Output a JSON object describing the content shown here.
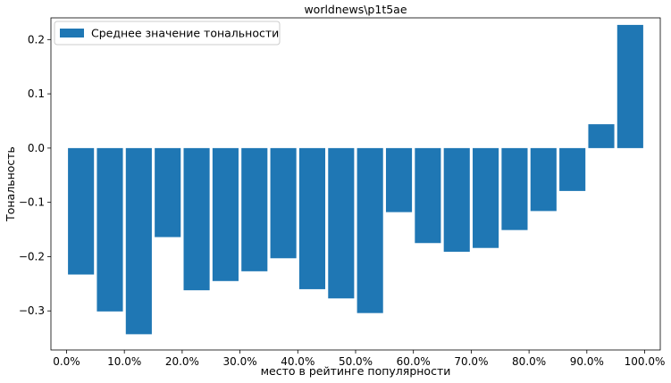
{
  "chart_data": {
    "type": "bar",
    "title": "worldnews\\p1t5ae",
    "xlabel": "место в рейтинге популярности",
    "ylabel": "Тональность",
    "legend": {
      "label": "Среднее значение тональности",
      "position": "top-left"
    },
    "bar_color": "#1f77b4",
    "grid": false,
    "x_range": [
      -0.027,
      1.027
    ],
    "ylim": [
      -0.372,
      0.24
    ],
    "x_ticks": [
      0.0,
      0.1,
      0.2,
      0.3,
      0.4,
      0.5,
      0.6,
      0.7,
      0.8,
      0.9,
      1.0
    ],
    "x_tick_labels": [
      "0.0%",
      "10.0%",
      "20.0%",
      "30.0%",
      "40.0%",
      "50.0%",
      "60.0%",
      "70.0%",
      "80.0%",
      "90.0%",
      "100.0%"
    ],
    "y_ticks": [
      -0.3,
      -0.2,
      -0.1,
      0.0,
      0.1,
      0.2
    ],
    "y_tick_labels": [
      "−0.3",
      "−0.2",
      "−0.1",
      "0.0",
      "0.1",
      "0.2"
    ],
    "bar_width": 0.045,
    "x": [
      0.025,
      0.075,
      0.125,
      0.175,
      0.225,
      0.275,
      0.325,
      0.375,
      0.425,
      0.475,
      0.525,
      0.575,
      0.625,
      0.675,
      0.725,
      0.775,
      0.825,
      0.875,
      0.925,
      0.975
    ],
    "values": [
      -0.233,
      -0.301,
      -0.343,
      -0.164,
      -0.262,
      -0.245,
      -0.227,
      -0.203,
      -0.26,
      -0.277,
      -0.304,
      -0.118,
      -0.175,
      -0.191,
      -0.184,
      -0.151,
      -0.116,
      -0.079,
      0.044,
      0.227
    ]
  }
}
